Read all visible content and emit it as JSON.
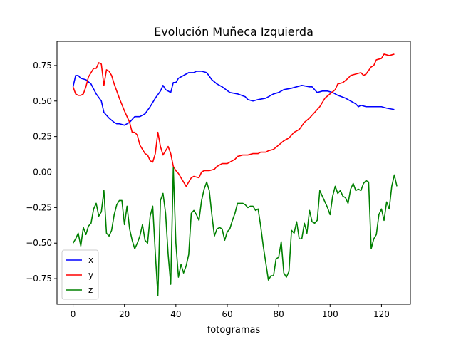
{
  "chart_data": {
    "type": "line",
    "title": "Evolución Muñeca Izquierda",
    "xlabel": "fotogramas",
    "ylabel": "",
    "xlim": [
      -6.25,
      131.25
    ],
    "ylim": [
      -0.93,
      0.92
    ],
    "xticks": [
      0,
      20,
      40,
      60,
      80,
      100,
      120
    ],
    "yticks": [
      -0.75,
      -0.5,
      -0.25,
      0.0,
      0.25,
      0.5,
      0.75
    ],
    "ytick_labels": [
      "−0.75",
      "−0.50",
      "−0.25",
      "0.00",
      "0.25",
      "0.50",
      "0.75"
    ],
    "grid": false,
    "legend": "lower-left",
    "series": [
      {
        "name": "x",
        "color": "#0000ff",
        "points": [
          [
            0,
            0.6
          ],
          [
            1,
            0.68
          ],
          [
            2,
            0.68
          ],
          [
            3,
            0.66
          ],
          [
            5,
            0.65
          ],
          [
            7,
            0.62
          ],
          [
            9,
            0.55
          ],
          [
            11,
            0.5
          ],
          [
            12,
            0.42
          ],
          [
            14,
            0.38
          ],
          [
            16,
            0.35
          ],
          [
            17,
            0.34
          ],
          [
            18,
            0.34
          ],
          [
            20,
            0.33
          ],
          [
            22,
            0.35
          ],
          [
            24,
            0.39
          ],
          [
            26,
            0.39
          ],
          [
            28,
            0.41
          ],
          [
            30,
            0.46
          ],
          [
            32,
            0.52
          ],
          [
            34,
            0.57
          ],
          [
            35,
            0.61
          ],
          [
            36,
            0.58
          ],
          [
            38,
            0.56
          ],
          [
            39,
            0.63
          ],
          [
            40,
            0.63
          ],
          [
            41,
            0.66
          ],
          [
            43,
            0.68
          ],
          [
            45,
            0.7
          ],
          [
            47,
            0.7
          ],
          [
            48,
            0.71
          ],
          [
            50,
            0.71
          ],
          [
            52,
            0.7
          ],
          [
            54,
            0.65
          ],
          [
            56,
            0.62
          ],
          [
            58,
            0.6
          ],
          [
            61,
            0.56
          ],
          [
            64,
            0.55
          ],
          [
            67,
            0.53
          ],
          [
            68,
            0.51
          ],
          [
            70,
            0.5
          ],
          [
            72,
            0.51
          ],
          [
            75,
            0.52
          ],
          [
            78,
            0.55
          ],
          [
            80,
            0.56
          ],
          [
            82,
            0.58
          ],
          [
            85,
            0.59
          ],
          [
            87,
            0.6
          ],
          [
            89,
            0.61
          ],
          [
            92,
            0.6
          ],
          [
            93,
            0.6
          ],
          [
            95,
            0.56
          ],
          [
            97,
            0.57
          ],
          [
            99,
            0.57
          ],
          [
            101,
            0.56
          ],
          [
            103,
            0.54
          ],
          [
            106,
            0.52
          ],
          [
            108,
            0.5
          ],
          [
            110,
            0.48
          ],
          [
            111,
            0.46
          ],
          [
            112,
            0.47
          ],
          [
            114,
            0.46
          ],
          [
            116,
            0.46
          ],
          [
            118,
            0.46
          ],
          [
            120,
            0.46
          ],
          [
            122,
            0.45
          ],
          [
            125,
            0.44
          ]
        ]
      },
      {
        "name": "y",
        "color": "#ff0000",
        "points": [
          [
            0,
            0.6
          ],
          [
            1,
            0.55
          ],
          [
            2,
            0.54
          ],
          [
            3,
            0.54
          ],
          [
            4,
            0.55
          ],
          [
            5,
            0.6
          ],
          [
            6,
            0.67
          ],
          [
            7,
            0.7
          ],
          [
            8,
            0.73
          ],
          [
            9,
            0.73
          ],
          [
            10,
            0.77
          ],
          [
            11,
            0.76
          ],
          [
            12,
            0.61
          ],
          [
            13,
            0.72
          ],
          [
            14,
            0.71
          ],
          [
            15,
            0.68
          ],
          [
            16,
            0.62
          ],
          [
            18,
            0.52
          ],
          [
            20,
            0.43
          ],
          [
            21,
            0.39
          ],
          [
            22,
            0.35
          ],
          [
            23,
            0.28
          ],
          [
            24,
            0.28
          ],
          [
            25,
            0.26
          ],
          [
            26,
            0.19
          ],
          [
            27,
            0.16
          ],
          [
            28,
            0.13
          ],
          [
            29,
            0.12
          ],
          [
            30,
            0.08
          ],
          [
            31,
            0.07
          ],
          [
            32,
            0.13
          ],
          [
            33,
            0.28
          ],
          [
            34,
            0.18
          ],
          [
            35,
            0.12
          ],
          [
            36,
            0.15
          ],
          [
            37,
            0.18
          ],
          [
            38,
            0.13
          ],
          [
            39,
            0.04
          ],
          [
            40,
            0.01
          ],
          [
            41,
            -0.01
          ],
          [
            42,
            -0.04
          ],
          [
            43,
            -0.07
          ],
          [
            44,
            -0.1
          ],
          [
            45,
            -0.07
          ],
          [
            46,
            -0.04
          ],
          [
            47,
            -0.03
          ],
          [
            49,
            -0.04
          ],
          [
            50,
            0.0
          ],
          [
            51,
            0.01
          ],
          [
            53,
            0.01
          ],
          [
            55,
            0.02
          ],
          [
            56,
            0.04
          ],
          [
            57,
            0.05
          ],
          [
            58,
            0.06
          ],
          [
            60,
            0.06
          ],
          [
            62,
            0.08
          ],
          [
            63,
            0.09
          ],
          [
            64,
            0.11
          ],
          [
            66,
            0.12
          ],
          [
            68,
            0.12
          ],
          [
            70,
            0.13
          ],
          [
            72,
            0.13
          ],
          [
            73,
            0.14
          ],
          [
            75,
            0.14
          ],
          [
            76,
            0.15
          ],
          [
            78,
            0.16
          ],
          [
            80,
            0.19
          ],
          [
            82,
            0.22
          ],
          [
            84,
            0.24
          ],
          [
            86,
            0.28
          ],
          [
            88,
            0.3
          ],
          [
            90,
            0.35
          ],
          [
            92,
            0.38
          ],
          [
            94,
            0.42
          ],
          [
            96,
            0.46
          ],
          [
            98,
            0.52
          ],
          [
            100,
            0.55
          ],
          [
            102,
            0.58
          ],
          [
            103,
            0.62
          ],
          [
            105,
            0.63
          ],
          [
            107,
            0.66
          ],
          [
            108,
            0.68
          ],
          [
            110,
            0.69
          ],
          [
            112,
            0.7
          ],
          [
            113,
            0.68
          ],
          [
            114,
            0.69
          ],
          [
            116,
            0.74
          ],
          [
            117,
            0.75
          ],
          [
            118,
            0.79
          ],
          [
            120,
            0.8
          ],
          [
            121,
            0.83
          ],
          [
            123,
            0.82
          ],
          [
            125,
            0.83
          ]
        ]
      },
      {
        "name": "z",
        "color": "#008000",
        "points": [
          [
            0,
            -0.5
          ],
          [
            1,
            -0.47
          ],
          [
            2,
            -0.43
          ],
          [
            3,
            -0.52
          ],
          [
            4,
            -0.39
          ],
          [
            5,
            -0.44
          ],
          [
            6,
            -0.38
          ],
          [
            7,
            -0.36
          ],
          [
            8,
            -0.26
          ],
          [
            9,
            -0.22
          ],
          [
            10,
            -0.31
          ],
          [
            11,
            -0.28
          ],
          [
            12,
            -0.13
          ],
          [
            13,
            -0.43
          ],
          [
            14,
            -0.45
          ],
          [
            15,
            -0.41
          ],
          [
            16,
            -0.3
          ],
          [
            17,
            -0.23
          ],
          [
            18,
            -0.2
          ],
          [
            19,
            -0.2
          ],
          [
            20,
            -0.37
          ],
          [
            21,
            -0.24
          ],
          [
            22,
            -0.4
          ],
          [
            23,
            -0.48
          ],
          [
            24,
            -0.54
          ],
          [
            25,
            -0.5
          ],
          [
            26,
            -0.45
          ],
          [
            27,
            -0.37
          ],
          [
            28,
            -0.48
          ],
          [
            29,
            -0.5
          ],
          [
            30,
            -0.31
          ],
          [
            31,
            -0.24
          ],
          [
            32,
            -0.57
          ],
          [
            33,
            -0.87
          ],
          [
            34,
            -0.2
          ],
          [
            35,
            -0.15
          ],
          [
            36,
            -0.29
          ],
          [
            37,
            -0.58
          ],
          [
            38,
            -0.79
          ],
          [
            39,
            0.03
          ],
          [
            40,
            -0.5
          ],
          [
            41,
            -0.74
          ],
          [
            42,
            -0.65
          ],
          [
            43,
            -0.71
          ],
          [
            44,
            -0.66
          ],
          [
            45,
            -0.58
          ],
          [
            46,
            -0.29
          ],
          [
            47,
            -0.27
          ],
          [
            48,
            -0.3
          ],
          [
            49,
            -0.34
          ],
          [
            50,
            -0.2
          ],
          [
            51,
            -0.12
          ],
          [
            52,
            -0.07
          ],
          [
            53,
            -0.13
          ],
          [
            54,
            -0.3
          ],
          [
            55,
            -0.45
          ],
          [
            56,
            -0.4
          ],
          [
            57,
            -0.39
          ],
          [
            58,
            -0.4
          ],
          [
            59,
            -0.48
          ],
          [
            60,
            -0.42
          ],
          [
            61,
            -0.4
          ],
          [
            62,
            -0.34
          ],
          [
            63,
            -0.29
          ],
          [
            64,
            -0.22
          ],
          [
            66,
            -0.22
          ],
          [
            67,
            -0.23
          ],
          [
            68,
            -0.25
          ],
          [
            69,
            -0.24
          ],
          [
            70,
            -0.24
          ],
          [
            71,
            -0.27
          ],
          [
            72,
            -0.26
          ],
          [
            73,
            -0.38
          ],
          [
            74,
            -0.52
          ],
          [
            75,
            -0.64
          ],
          [
            76,
            -0.76
          ],
          [
            77,
            -0.73
          ],
          [
            78,
            -0.73
          ],
          [
            79,
            -0.61
          ],
          [
            80,
            -0.6
          ],
          [
            81,
            -0.49
          ],
          [
            82,
            -0.71
          ],
          [
            83,
            -0.74
          ],
          [
            84,
            -0.7
          ],
          [
            85,
            -0.41
          ],
          [
            86,
            -0.43
          ],
          [
            87,
            -0.35
          ],
          [
            88,
            -0.47
          ],
          [
            89,
            -0.47
          ],
          [
            90,
            -0.36
          ],
          [
            91,
            -0.43
          ],
          [
            92,
            -0.27
          ],
          [
            93,
            -0.35
          ],
          [
            94,
            -0.36
          ],
          [
            95,
            -0.34
          ],
          [
            96,
            -0.13
          ],
          [
            97,
            -0.17
          ],
          [
            98,
            -0.21
          ],
          [
            99,
            -0.25
          ],
          [
            100,
            -0.3
          ],
          [
            101,
            -0.17
          ],
          [
            102,
            -0.1
          ],
          [
            103,
            -0.15
          ],
          [
            104,
            -0.13
          ],
          [
            105,
            -0.17
          ],
          [
            106,
            -0.18
          ],
          [
            107,
            -0.22
          ],
          [
            108,
            -0.12
          ],
          [
            109,
            -0.08
          ],
          [
            110,
            -0.13
          ],
          [
            111,
            -0.12
          ],
          [
            112,
            -0.13
          ],
          [
            113,
            -0.08
          ],
          [
            114,
            -0.06
          ],
          [
            115,
            -0.07
          ],
          [
            116,
            -0.54
          ],
          [
            117,
            -0.47
          ],
          [
            118,
            -0.44
          ],
          [
            119,
            -0.3
          ],
          [
            120,
            -0.26
          ],
          [
            121,
            -0.34
          ],
          [
            122,
            -0.21
          ],
          [
            123,
            -0.26
          ],
          [
            124,
            -0.1
          ],
          [
            125,
            -0.02
          ],
          [
            126,
            -0.1
          ]
        ]
      }
    ]
  }
}
